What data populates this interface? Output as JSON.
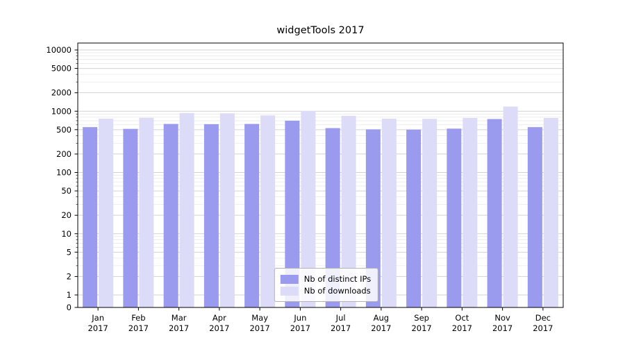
{
  "chart_data": {
    "type": "bar",
    "title": "widgetTools 2017",
    "categories": [
      "Jan 2017",
      "Feb 2017",
      "Mar 2017",
      "Apr 2017",
      "May 2017",
      "Jun 2017",
      "Jul 2017",
      "Aug 2017",
      "Sep 2017",
      "Oct 2017",
      "Nov 2017",
      "Dec 2017"
    ],
    "series": [
      {
        "name": "Nb of distinct IPs",
        "color": "#9a9aef",
        "values": [
          550,
          515,
          620,
          615,
          620,
          700,
          530,
          505,
          500,
          520,
          745,
          550
        ]
      },
      {
        "name": "Nb of downloads",
        "color": "#dcdcf9",
        "values": [
          755,
          780,
          935,
          925,
          855,
          1005,
          840,
          755,
          750,
          775,
          1190,
          775
        ]
      }
    ],
    "xlabel": "",
    "ylabel": "",
    "yscale": "symlog",
    "yticks": [
      0,
      1,
      2,
      5,
      10,
      20,
      50,
      100,
      200,
      500,
      1000,
      2000,
      5000,
      10000
    ],
    "ylim": [
      0,
      13000
    ],
    "grid": true,
    "legend_position": "lower center"
  }
}
